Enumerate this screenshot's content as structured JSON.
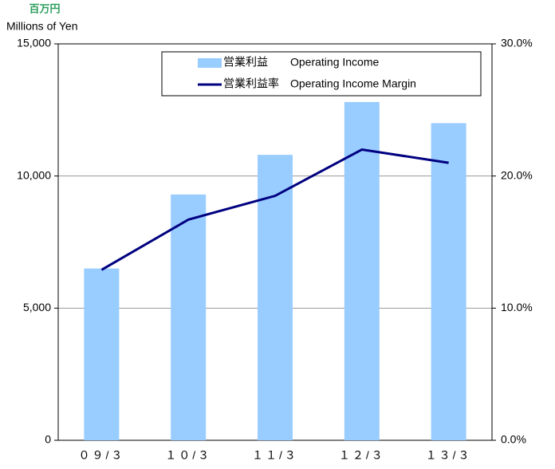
{
  "chart_data": {
    "type": "bar",
    "unit_label_jp": "百万円",
    "unit_label": "Millions of Yen",
    "categories": [
      "０９/３",
      "１０/３",
      "１１/３",
      "１２/３",
      "１３/３"
    ],
    "series": [
      {
        "name": "営業利益　　Operating Income",
        "color": "#99ccff",
        "type": "bar",
        "values": [
          6500,
          9300,
          10800,
          12800,
          12000
        ]
      },
      {
        "name": "営業利益率　Operating Income Margin",
        "color": "#000080",
        "type": "line",
        "axis": "y2",
        "values": [
          12.9,
          16.7,
          18.5,
          22.0,
          21.0
        ]
      }
    ],
    "ylim": [
      0,
      15000
    ],
    "yticks": [
      0,
      {
        "value": 5000,
        "label": "5,000"
      },
      {
        "value": 10000,
        "label": "10,000"
      },
      {
        "value": 15000,
        "label": "15,000"
      }
    ],
    "y2lim": [
      0,
      30
    ],
    "y2ticks": [
      {
        "value": 0,
        "label": "0.0%"
      },
      {
        "value": 10,
        "label": "10.0%"
      },
      {
        "value": 20,
        "label": "20.0%"
      },
      {
        "value": 30,
        "label": "30.0%"
      }
    ],
    "grid": true,
    "legend": "top-right"
  }
}
